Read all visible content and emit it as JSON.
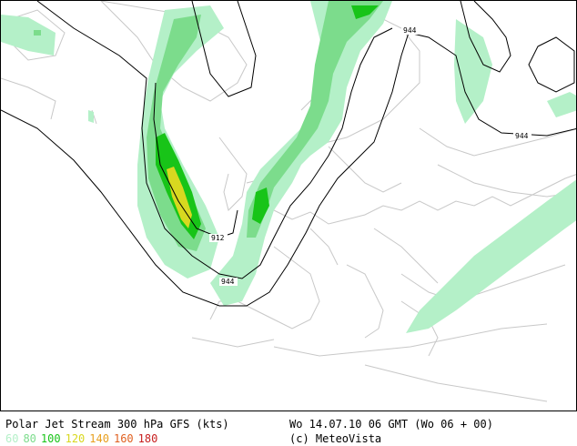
{
  "map": {
    "contour_labels": [
      "944",
      "944",
      "912",
      "944"
    ]
  },
  "footer": {
    "title": "Polar Jet Stream 300 hPa GFS (kts)",
    "datetime": "Wo 14.07.10 06 GMT (Wo 06 + 00)",
    "credit": "(c) MeteoVista"
  },
  "legend": {
    "levels": [
      {
        "label": "60",
        "color": "#b4f0c8"
      },
      {
        "label": "80",
        "color": "#7cdc8c"
      },
      {
        "label": "100",
        "color": "#18c418"
      },
      {
        "label": "120",
        "color": "#d8d820"
      },
      {
        "label": "140",
        "color": "#e8a020"
      },
      {
        "label": "160",
        "color": "#e06020"
      },
      {
        "label": "180",
        "color": "#c82020"
      }
    ]
  }
}
